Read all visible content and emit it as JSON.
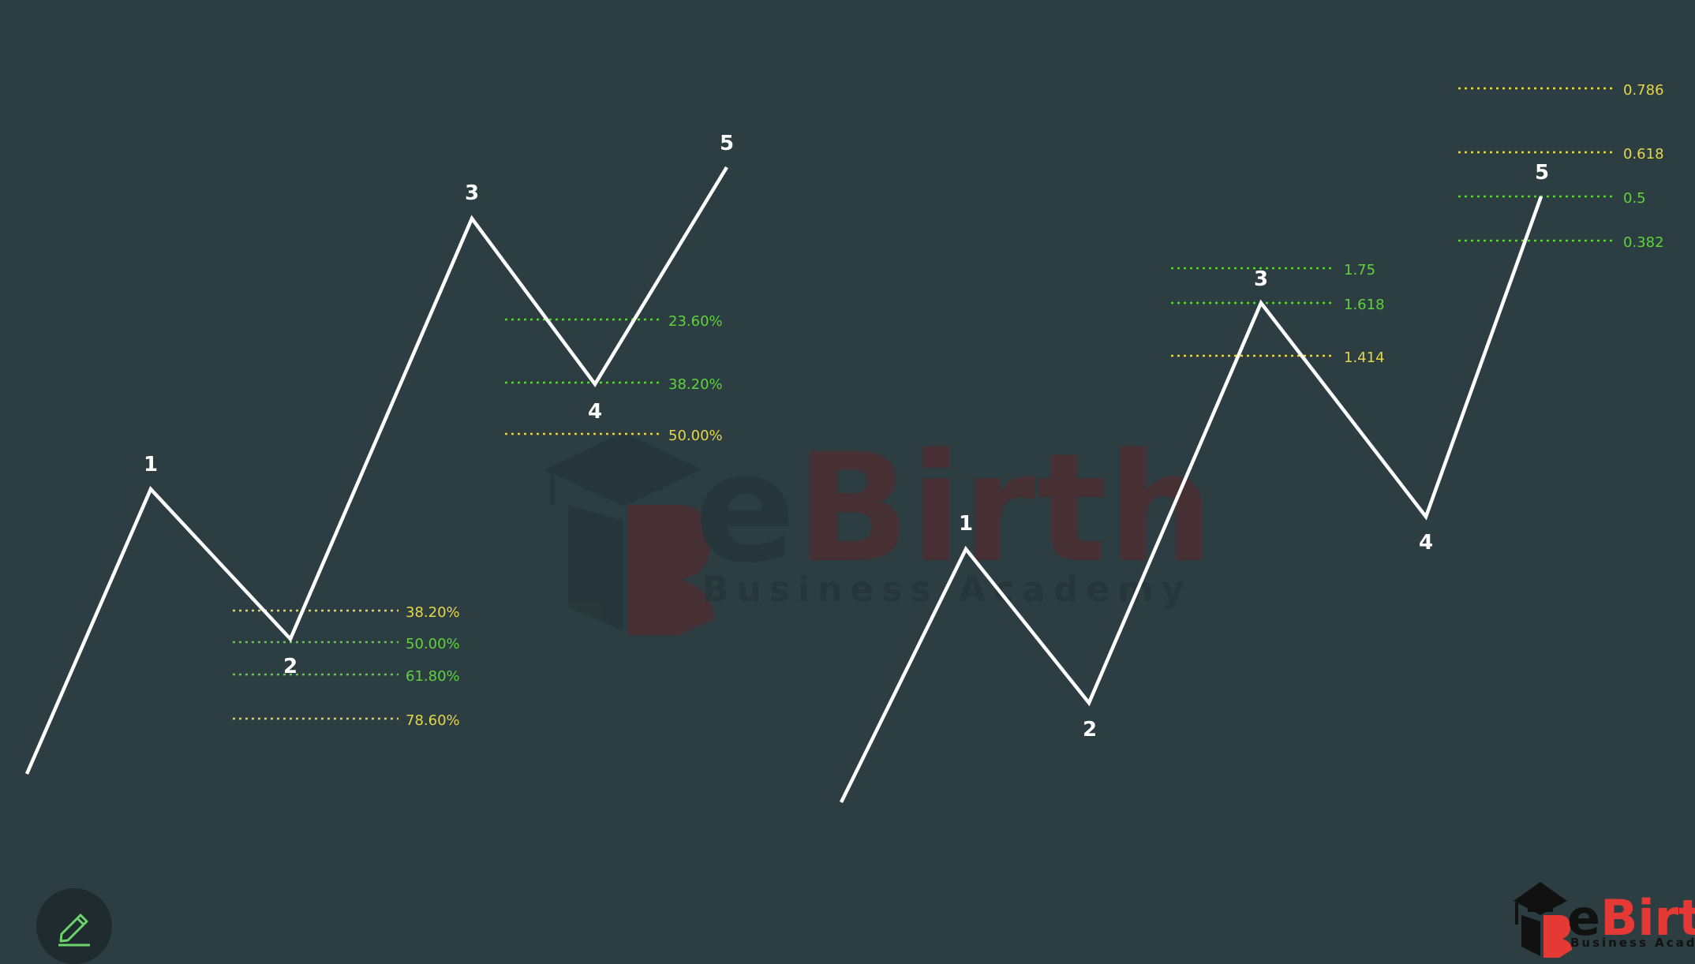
{
  "colors": {
    "background": "#2c3e42",
    "wave": "#ffffff",
    "fib_yellow": "#e6d64a",
    "fib_green": "#5fd23c",
    "watermark_dark": "#27363a",
    "watermark_red": "#4a2f33",
    "logo_red": "#e53935",
    "logo_black": "#111111"
  },
  "watermark": {
    "brand_prefix": "e",
    "brand_main": "Birth",
    "subtitle": "Business Academy"
  },
  "logo": {
    "brand_prefix": "e",
    "brand_main": "Birth",
    "subtitle": "Business Academy"
  },
  "left_diagram": {
    "wave_labels": [
      "1",
      "2",
      "3",
      "4",
      "5"
    ],
    "wave2_fib_levels": [
      {
        "label": "38.20%",
        "color": "yellow"
      },
      {
        "label": "50.00%",
        "color": "green"
      },
      {
        "label": "61.80%",
        "color": "green"
      },
      {
        "label": "78.60%",
        "color": "yellow"
      }
    ],
    "wave4_fib_levels": [
      {
        "label": "23.60%",
        "color": "green"
      },
      {
        "label": "38.20%",
        "color": "green"
      },
      {
        "label": "50.00%",
        "color": "yellow"
      }
    ]
  },
  "right_diagram": {
    "wave_labels": [
      "1",
      "2",
      "3",
      "4",
      "5"
    ],
    "wave3_fib_levels": [
      {
        "label": "1.75",
        "color": "green"
      },
      {
        "label": "1.618",
        "color": "green"
      },
      {
        "label": "1.414",
        "color": "yellow"
      }
    ],
    "wave5_fib_levels": [
      {
        "label": "0.786",
        "color": "yellow"
      },
      {
        "label": "0.618",
        "color": "yellow"
      },
      {
        "label": "0.5",
        "color": "green"
      },
      {
        "label": "0.382",
        "color": "green"
      }
    ]
  },
  "toolbar": {
    "edit_icon": "pencil-icon"
  }
}
